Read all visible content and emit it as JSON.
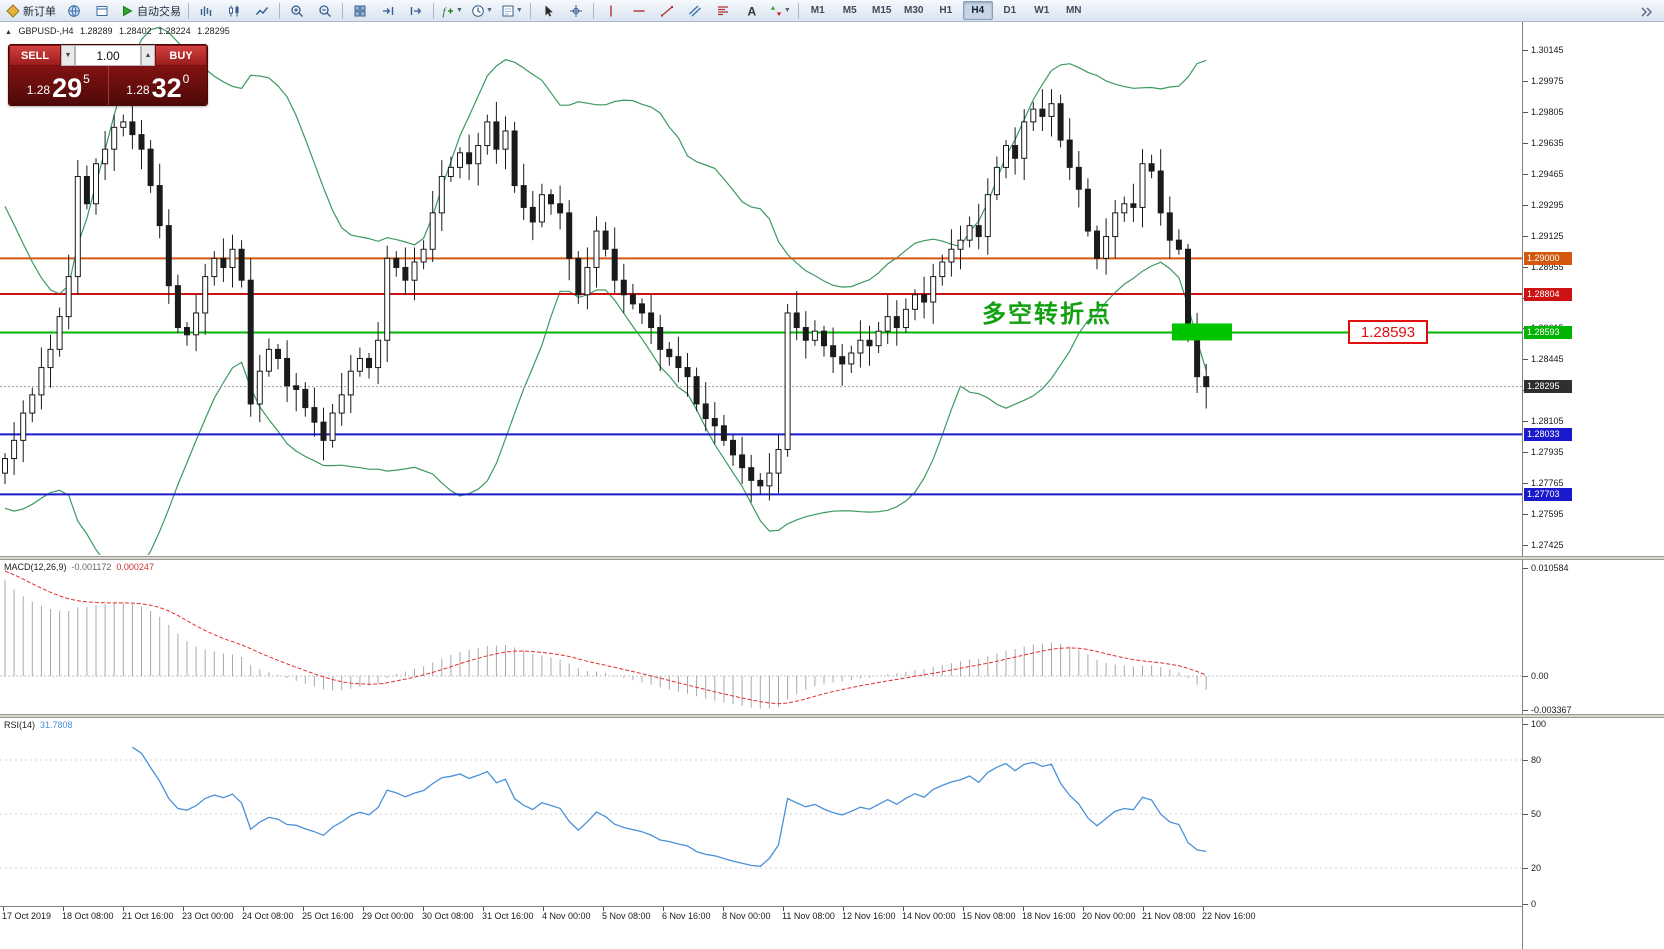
{
  "toolbar": {
    "new_order_label": "新订单",
    "autotrading_label": "自动交易",
    "timeframes": [
      "M1",
      "M5",
      "M15",
      "M30",
      "H1",
      "H4",
      "D1",
      "W1",
      "MN"
    ],
    "active_timeframe": "H4"
  },
  "symbol_header": {
    "collapse_glyph": "▲",
    "title": "GBPUSD-,H4",
    "open": "1.28289",
    "high": "1.28402",
    "low": "1.28224",
    "close": "1.28295"
  },
  "one_click": {
    "sell_label": "SELL",
    "buy_label": "BUY",
    "volume": "1.00",
    "sell_base": "1.28",
    "sell_big": "29",
    "sell_sup": "5",
    "buy_base": "1.28",
    "buy_big": "32",
    "buy_sup": "0"
  },
  "annotation": {
    "text": "多空转折点",
    "text_color": "#12a012",
    "price_tag": "1.28593",
    "price_tag_color": "#e01010",
    "highlight_color": "#00c400"
  },
  "macd_panel": {
    "label": "MACD(12,26,9)",
    "main_value": "-0.001172",
    "signal_value": "0.000247"
  },
  "rsi_panel": {
    "label": "RSI(14)",
    "value": "31.7808"
  },
  "chart_data": {
    "type": "candlestick",
    "symbol": "GBPUSD-",
    "timeframe": "H4",
    "first_open": 1.2782,
    "closes": [
      1.279,
      1.28,
      1.2815,
      1.2825,
      1.284,
      1.285,
      1.2868,
      1.289,
      1.2945,
      1.293,
      1.2952,
      1.296,
      1.2972,
      1.2975,
      1.2968,
      1.296,
      1.294,
      1.2918,
      1.2885,
      1.2862,
      1.2858,
      1.287,
      1.289,
      1.29,
      1.2895,
      1.2905,
      1.2888,
      1.282,
      1.2838,
      1.285,
      1.2845,
      1.283,
      1.2828,
      1.2818,
      1.281,
      1.28,
      1.2815,
      1.2825,
      1.2838,
      1.2845,
      1.284,
      1.2855,
      1.29,
      1.2895,
      1.2888,
      1.2898,
      1.2905,
      1.2925,
      1.2945,
      1.295,
      1.2958,
      1.2952,
      1.2962,
      1.2975,
      1.296,
      1.297,
      1.294,
      1.2928,
      1.292,
      1.2935,
      1.293,
      1.2925,
      1.29,
      1.288,
      1.2895,
      1.2915,
      1.2905,
      1.2888,
      1.288,
      1.2875,
      1.287,
      1.2862,
      1.285,
      1.2846,
      1.284,
      1.2835,
      1.282,
      1.2812,
      1.2808,
      1.28,
      1.2792,
      1.2785,
      1.2778,
      1.2775,
      1.2782,
      1.2795,
      1.287,
      1.2862,
      1.2855,
      1.286,
      1.2852,
      1.2846,
      1.2842,
      1.2848,
      1.2855,
      1.2852,
      1.286,
      1.2868,
      1.2862,
      1.2872,
      1.288,
      1.2876,
      1.289,
      1.2898,
      1.2905,
      1.291,
      1.2918,
      1.2912,
      1.2935,
      1.295,
      1.2962,
      1.2955,
      1.2975,
      1.2982,
      1.2978,
      1.2985,
      1.2965,
      1.295,
      1.2938,
      1.2915,
      1.29,
      1.2912,
      1.2925,
      1.293,
      1.2928,
      1.2952,
      1.2948,
      1.2925,
      1.291,
      1.2905,
      1.286,
      1.2835,
      1.28295
    ],
    "bollinger_period": 20,
    "bollinger_deviation": 2,
    "bollinger_color": "#3c9960",
    "price_axis": {
      "max": 1.30145,
      "min": 1.27425,
      "step": 0.0017
    },
    "levels": [
      {
        "value": 1.29,
        "label": "1.29000",
        "color": "#d4590e"
      },
      {
        "value": 1.28804,
        "label": "1.28804",
        "color": "#cc1212"
      },
      {
        "value": 1.28593,
        "label": "1.28593",
        "color": "#00b400"
      },
      {
        "value": 1.28295,
        "label": "1.28295",
        "color": "#2f2f2f",
        "bid": true
      },
      {
        "value": 1.28033,
        "label": "1.28033",
        "color": "#1a1acc"
      },
      {
        "value": 1.27703,
        "label": "1.27703",
        "color": "#1a1acc"
      }
    ],
    "macd_axis": {
      "labels": [
        "0.010584",
        "0.00",
        "-0.003367"
      ],
      "values": [
        0.010584,
        0,
        -0.003367
      ]
    },
    "rsi_axis": {
      "labels": [
        "100",
        "80",
        "50",
        "20",
        "0"
      ],
      "values": [
        100,
        80,
        50,
        20,
        0
      ]
    },
    "rsi_levels": [
      80,
      50,
      20
    ],
    "time_labels": [
      "17 Oct 2019",
      "18 Oct 08:00",
      "21 Oct 16:00",
      "23 Oct 00:00",
      "24 Oct 08:00",
      "25 Oct 16:00",
      "29 Oct 00:00",
      "30 Oct 08:00",
      "31 Oct 16:00",
      "4 Nov 00:00",
      "5 Nov 08:00",
      "6 Nov 16:00",
      "8 Nov 00:00",
      "11 Nov 08:00",
      "12 Nov 16:00",
      "14 Nov 00:00",
      "15 Nov 08:00",
      "18 Nov 16:00",
      "20 Nov 00:00",
      "21 Nov 08:00",
      "22 Nov 16:00"
    ]
  }
}
